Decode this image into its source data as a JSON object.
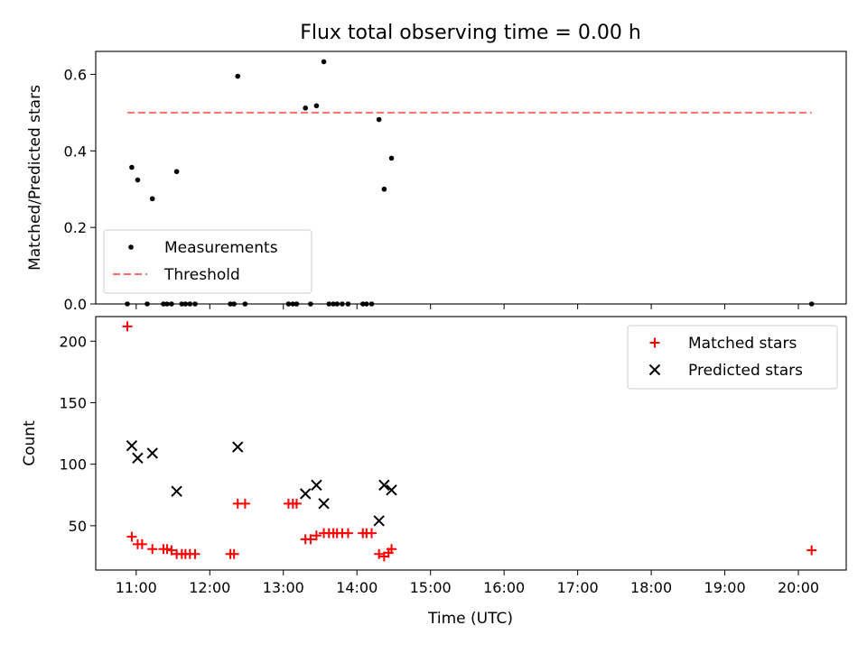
{
  "chart_data": {
    "type": "scatter",
    "title": "Flux total observing time = 0.00 h",
    "xlabel": "Time (UTC)",
    "x_unit": "hours (UTC)",
    "xlim": [
      10.45,
      20.65
    ],
    "xticks": [
      11,
      12,
      13,
      14,
      15,
      16,
      17,
      18,
      19,
      20
    ],
    "xtick_labels": [
      "11:00",
      "12:00",
      "13:00",
      "14:00",
      "15:00",
      "16:00",
      "17:00",
      "18:00",
      "19:00",
      "20:00"
    ],
    "grid": false,
    "panels": [
      {
        "ylabel": "Matched/Predicted stars",
        "ylim": [
          0,
          0.66
        ],
        "yticks": [
          0.0,
          0.2,
          0.4,
          0.6
        ],
        "ytick_labels": [
          "0.0",
          "0.2",
          "0.4",
          "0.6"
        ],
        "legend_position": "lower-left",
        "series": [
          {
            "name": "Measurements",
            "marker": "dot",
            "color": "#000000",
            "points": [
              [
                10.88,
                0
              ],
              [
                10.94,
                0.357
              ],
              [
                11.02,
                0.324
              ],
              [
                11.15,
                0
              ],
              [
                11.22,
                0.275
              ],
              [
                11.37,
                0
              ],
              [
                11.42,
                0
              ],
              [
                11.48,
                0
              ],
              [
                11.55,
                0.346
              ],
              [
                11.62,
                0
              ],
              [
                11.67,
                0
              ],
              [
                11.73,
                0
              ],
              [
                11.8,
                0
              ],
              [
                12.28,
                0
              ],
              [
                12.33,
                0
              ],
              [
                12.38,
                0.595
              ],
              [
                12.48,
                0
              ],
              [
                13.07,
                0
              ],
              [
                13.13,
                0
              ],
              [
                13.18,
                0
              ],
              [
                13.3,
                0.512
              ],
              [
                13.37,
                0
              ],
              [
                13.45,
                0.518
              ],
              [
                13.55,
                0.633
              ],
              [
                13.62,
                0
              ],
              [
                13.68,
                0
              ],
              [
                13.73,
                0
              ],
              [
                13.8,
                0
              ],
              [
                13.88,
                0
              ],
              [
                14.08,
                0
              ],
              [
                14.13,
                0
              ],
              [
                14.2,
                0
              ],
              [
                14.3,
                0.482
              ],
              [
                14.37,
                0.3
              ],
              [
                14.47,
                0.381
              ],
              [
                20.18,
                0
              ]
            ]
          },
          {
            "name": "Threshold",
            "style": "dashed",
            "color": "#ff6b6b",
            "points": [
              [
                10.88,
                0.5
              ],
              [
                20.18,
                0.5
              ]
            ]
          }
        ]
      },
      {
        "ylabel": "Count",
        "ylim": [
          14,
          220
        ],
        "yticks": [
          50,
          100,
          150,
          200
        ],
        "ytick_labels": [
          "50",
          "100",
          "150",
          "200"
        ],
        "legend_position": "upper-right",
        "series": [
          {
            "name": "Matched stars",
            "marker": "plus",
            "color": "#ff0000",
            "points": [
              [
                10.88,
                212
              ],
              [
                10.94,
                41
              ],
              [
                11.02,
                35
              ],
              [
                11.08,
                35
              ],
              [
                11.22,
                31
              ],
              [
                11.37,
                31
              ],
              [
                11.42,
                31
              ],
              [
                11.48,
                30
              ],
              [
                11.55,
                27
              ],
              [
                11.62,
                27
              ],
              [
                11.67,
                27
              ],
              [
                11.73,
                27
              ],
              [
                11.8,
                27
              ],
              [
                12.28,
                27
              ],
              [
                12.33,
                27
              ],
              [
                12.38,
                68
              ],
              [
                12.48,
                68
              ],
              [
                13.07,
                68
              ],
              [
                13.13,
                68
              ],
              [
                13.18,
                68
              ],
              [
                13.3,
                39
              ],
              [
                13.37,
                39
              ],
              [
                13.45,
                42
              ],
              [
                13.55,
                44
              ],
              [
                13.62,
                44
              ],
              [
                13.68,
                44
              ],
              [
                13.73,
                44
              ],
              [
                13.8,
                44
              ],
              [
                13.88,
                44
              ],
              [
                14.08,
                44
              ],
              [
                14.13,
                44
              ],
              [
                14.2,
                44
              ],
              [
                14.3,
                27
              ],
              [
                14.37,
                25
              ],
              [
                14.43,
                28
              ],
              [
                14.47,
                31
              ],
              [
                20.18,
                30
              ]
            ]
          },
          {
            "name": "Predicted stars",
            "marker": "x",
            "color": "#000000",
            "points": [
              [
                10.94,
                115
              ],
              [
                11.02,
                105
              ],
              [
                11.22,
                109
              ],
              [
                11.55,
                78
              ],
              [
                12.38,
                114
              ],
              [
                13.3,
                76
              ],
              [
                13.45,
                83
              ],
              [
                13.55,
                68
              ],
              [
                14.3,
                54
              ],
              [
                14.37,
                83
              ],
              [
                14.47,
                79
              ]
            ]
          }
        ]
      }
    ]
  }
}
